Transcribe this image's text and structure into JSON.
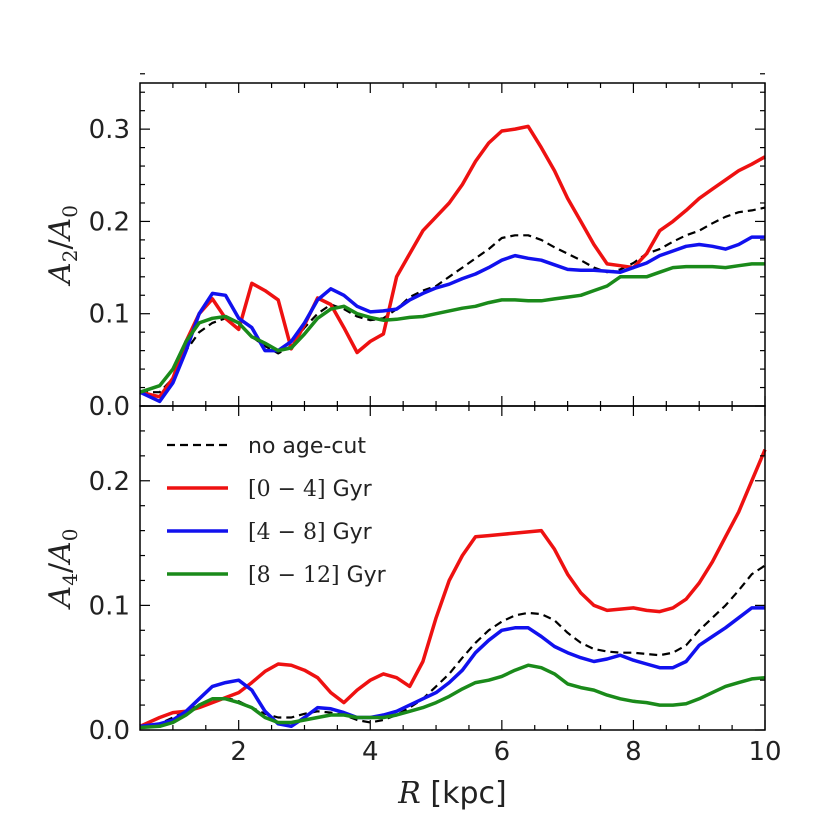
{
  "chart_data": [
    {
      "type": "line",
      "panel": "top",
      "ylabel": "A_2/A_0",
      "ylabel_base": "A",
      "ylabel_sub": "2",
      "ylabel_den": "A",
      "ylabel_den_sub": "0",
      "xlim": [
        0.5,
        10
      ],
      "ylim": [
        0,
        0.35
      ],
      "yticks": [
        0.0,
        0.1,
        0.2,
        0.3
      ],
      "ytick_labels": [
        "0.0",
        "0.1",
        "0.2",
        "0.3"
      ],
      "x": [
        0.5,
        0.8,
        1.0,
        1.2,
        1.4,
        1.6,
        1.8,
        2.0,
        2.2,
        2.4,
        2.6,
        2.8,
        3.0,
        3.2,
        3.4,
        3.6,
        3.8,
        4.0,
        4.2,
        4.4,
        4.6,
        4.8,
        5.0,
        5.2,
        5.4,
        5.6,
        5.8,
        6.0,
        6.2,
        6.4,
        6.6,
        6.8,
        7.0,
        7.2,
        7.4,
        7.6,
        7.8,
        8.0,
        8.2,
        8.4,
        8.6,
        8.8,
        9.0,
        9.2,
        9.4,
        9.6,
        9.8,
        10.0
      ],
      "series": [
        {
          "name": "no age-cut",
          "color": "#000000",
          "dash": true,
          "values": [
            0.015,
            0.015,
            0.03,
            0.06,
            0.08,
            0.09,
            0.095,
            0.09,
            0.075,
            0.065,
            0.057,
            0.065,
            0.085,
            0.1,
            0.11,
            0.105,
            0.097,
            0.093,
            0.095,
            0.105,
            0.118,
            0.125,
            0.13,
            0.14,
            0.15,
            0.16,
            0.17,
            0.182,
            0.185,
            0.185,
            0.18,
            0.172,
            0.165,
            0.158,
            0.15,
            0.145,
            0.148,
            0.155,
            0.165,
            0.17,
            0.178,
            0.185,
            0.19,
            0.198,
            0.205,
            0.21,
            0.212,
            0.215
          ]
        },
        {
          "name": "[0 - 4] Gyr",
          "color": "#ee1111",
          "dash": false,
          "values": [
            0.015,
            0.01,
            0.03,
            0.07,
            0.1,
            0.116,
            0.095,
            0.083,
            0.133,
            0.125,
            0.115,
            0.062,
            0.088,
            0.117,
            0.11,
            0.085,
            0.058,
            0.07,
            0.078,
            0.14,
            0.165,
            0.19,
            0.205,
            0.22,
            0.24,
            0.265,
            0.285,
            0.298,
            0.3,
            0.303,
            0.28,
            0.255,
            0.225,
            0.2,
            0.175,
            0.154,
            0.152,
            0.15,
            0.165,
            0.19,
            0.2,
            0.212,
            0.225,
            0.235,
            0.245,
            0.255,
            0.262,
            0.27
          ]
        },
        {
          "name": "[4 - 8] Gyr",
          "color": "#1111ee",
          "dash": false,
          "values": [
            0.015,
            0.005,
            0.025,
            0.06,
            0.1,
            0.122,
            0.12,
            0.095,
            0.085,
            0.06,
            0.06,
            0.07,
            0.09,
            0.115,
            0.127,
            0.12,
            0.108,
            0.102,
            0.103,
            0.105,
            0.115,
            0.122,
            0.128,
            0.132,
            0.138,
            0.143,
            0.15,
            0.158,
            0.163,
            0.16,
            0.158,
            0.153,
            0.148,
            0.147,
            0.147,
            0.146,
            0.145,
            0.15,
            0.155,
            0.163,
            0.168,
            0.173,
            0.175,
            0.173,
            0.17,
            0.175,
            0.183,
            0.183
          ]
        },
        {
          "name": "[8 - 12] Gyr",
          "color": "#1a8a1a",
          "dash": false,
          "values": [
            0.015,
            0.022,
            0.04,
            0.07,
            0.09,
            0.095,
            0.097,
            0.09,
            0.075,
            0.068,
            0.06,
            0.063,
            0.078,
            0.095,
            0.105,
            0.108,
            0.1,
            0.096,
            0.093,
            0.094,
            0.096,
            0.097,
            0.1,
            0.103,
            0.106,
            0.108,
            0.112,
            0.115,
            0.115,
            0.114,
            0.114,
            0.116,
            0.118,
            0.12,
            0.125,
            0.13,
            0.14,
            0.14,
            0.14,
            0.145,
            0.15,
            0.151,
            0.151,
            0.151,
            0.15,
            0.152,
            0.154,
            0.154
          ]
        }
      ]
    },
    {
      "type": "line",
      "panel": "bottom",
      "xlabel": "R [kpc]",
      "xlabel_var": "R",
      "xlabel_unit": " [kpc]",
      "ylabel": "A_4/A_0",
      "ylabel_base": "A",
      "ylabel_sub": "4",
      "ylabel_den": "A",
      "ylabel_den_sub": "0",
      "xlim": [
        0.5,
        10
      ],
      "ylim": [
        0,
        0.26
      ],
      "xticks": [
        2,
        4,
        6,
        8,
        10
      ],
      "xtick_labels": [
        "2",
        "4",
        "6",
        "8",
        "10"
      ],
      "yticks": [
        0.0,
        0.1,
        0.2
      ],
      "ytick_labels": [
        "0.0",
        "0.1",
        "0.2"
      ],
      "x": [
        0.5,
        0.8,
        1.0,
        1.2,
        1.4,
        1.6,
        1.8,
        2.0,
        2.2,
        2.4,
        2.6,
        2.8,
        3.0,
        3.2,
        3.4,
        3.6,
        3.8,
        4.0,
        4.2,
        4.4,
        4.6,
        4.8,
        5.0,
        5.2,
        5.4,
        5.6,
        5.8,
        6.0,
        6.2,
        6.4,
        6.6,
        6.8,
        7.0,
        7.2,
        7.4,
        7.6,
        7.8,
        8.0,
        8.2,
        8.4,
        8.6,
        8.8,
        9.0,
        9.2,
        9.4,
        9.6,
        9.8,
        10.0
      ],
      "series": [
        {
          "name": "no age-cut",
          "color": "#000000",
          "dash": true,
          "values": [
            0.003,
            0.005,
            0.01,
            0.015,
            0.02,
            0.025,
            0.026,
            0.023,
            0.018,
            0.013,
            0.01,
            0.01,
            0.013,
            0.015,
            0.014,
            0.012,
            0.008,
            0.006,
            0.008,
            0.012,
            0.018,
            0.025,
            0.035,
            0.045,
            0.058,
            0.07,
            0.08,
            0.087,
            0.092,
            0.094,
            0.093,
            0.088,
            0.078,
            0.07,
            0.065,
            0.063,
            0.062,
            0.062,
            0.061,
            0.06,
            0.062,
            0.068,
            0.08,
            0.09,
            0.1,
            0.112,
            0.125,
            0.132
          ]
        },
        {
          "name": "[0 - 4] Gyr",
          "color": "#ee1111",
          "dash": false,
          "values": [
            0.003,
            0.01,
            0.014,
            0.015,
            0.018,
            0.022,
            0.026,
            0.03,
            0.038,
            0.047,
            0.053,
            0.052,
            0.048,
            0.042,
            0.03,
            0.022,
            0.032,
            0.04,
            0.045,
            0.042,
            0.035,
            0.055,
            0.09,
            0.12,
            0.14,
            0.155,
            0.156,
            0.157,
            0.158,
            0.159,
            0.16,
            0.145,
            0.125,
            0.11,
            0.1,
            0.096,
            0.097,
            0.098,
            0.096,
            0.095,
            0.098,
            0.105,
            0.118,
            0.135,
            0.155,
            0.175,
            0.2,
            0.225
          ]
        },
        {
          "name": "[4 - 8] Gyr",
          "color": "#1111ee",
          "dash": false,
          "values": [
            0.003,
            0.005,
            0.008,
            0.015,
            0.025,
            0.035,
            0.038,
            0.04,
            0.032,
            0.015,
            0.005,
            0.003,
            0.01,
            0.018,
            0.017,
            0.014,
            0.01,
            0.01,
            0.012,
            0.015,
            0.02,
            0.025,
            0.03,
            0.038,
            0.048,
            0.062,
            0.072,
            0.08,
            0.082,
            0.082,
            0.075,
            0.067,
            0.062,
            0.058,
            0.055,
            0.057,
            0.06,
            0.056,
            0.053,
            0.05,
            0.05,
            0.055,
            0.068,
            0.075,
            0.082,
            0.09,
            0.098,
            0.098
          ]
        },
        {
          "name": "[8 - 12] Gyr",
          "color": "#1a8a1a",
          "dash": false,
          "values": [
            0.002,
            0.003,
            0.006,
            0.012,
            0.02,
            0.025,
            0.025,
            0.022,
            0.018,
            0.01,
            0.006,
            0.006,
            0.008,
            0.01,
            0.012,
            0.012,
            0.01,
            0.01,
            0.01,
            0.012,
            0.015,
            0.018,
            0.022,
            0.027,
            0.033,
            0.038,
            0.04,
            0.043,
            0.048,
            0.052,
            0.05,
            0.045,
            0.037,
            0.034,
            0.032,
            0.028,
            0.025,
            0.023,
            0.022,
            0.02,
            0.02,
            0.021,
            0.025,
            0.03,
            0.035,
            0.038,
            0.041,
            0.042
          ]
        }
      ],
      "legend": {
        "placement": "upper-left",
        "entries": [
          {
            "label": "no age-cut",
            "math": "",
            "unit": ""
          },
          {
            "label": "[0 - 4] Gyr",
            "math": "[0 − 4]",
            "unit": " Gyr"
          },
          {
            "label": "[4 - 8] Gyr",
            "math": "[4 − 8]",
            "unit": " Gyr"
          },
          {
            "label": "[8 - 12] Gyr",
            "math": "[8 − 12]",
            "unit": " Gyr"
          }
        ]
      }
    }
  ]
}
